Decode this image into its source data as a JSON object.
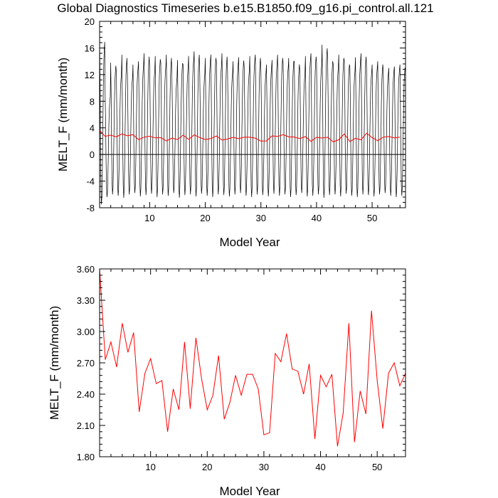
{
  "chart_data": [
    {
      "type": "line",
      "title": "Global Diagnostics Timeseries b.e15.B1850.f09_g16.pi_control.all.121",
      "xlabel": "Model Year",
      "ylabel": "MELT_F (mm/month)",
      "xlim": [
        1,
        56
      ],
      "ylim": [
        -8,
        20
      ],
      "xticks": [
        10,
        20,
        30,
        40,
        50
      ],
      "yticks": [
        -8,
        -4,
        0,
        4,
        8,
        12,
        16,
        20
      ],
      "ytick_labels": [
        "-8",
        "-4",
        "0",
        "4",
        "8",
        "12",
        "16",
        "20"
      ],
      "zero_line": true,
      "grid": false,
      "colors": {
        "monthly": "#000000",
        "annual": "#ff0000"
      },
      "series": [
        {
          "role": "monthly",
          "monthly_pattern": [
            15.0,
            9.0,
            1.0,
            -4.5,
            -6.2,
            -5.0,
            -1.5,
            3.5,
            8.5,
            12.0,
            13.5,
            14.5
          ],
          "yearly_peaks": [
            17.5,
            9.0,
            13.8,
            12.5,
            15.0,
            12.0,
            13.5,
            14.0,
            15.2,
            13.0,
            14.8,
            13.8,
            15.0,
            12.0,
            14.2,
            13.5,
            14.8,
            15.5,
            12.5,
            14.5,
            15.0,
            13.8,
            15.2,
            12.8,
            14.0,
            14.6,
            13.0,
            14.8,
            15.0,
            12.8,
            13.5,
            14.2,
            15.0,
            13.6,
            14.5,
            14.0,
            12.5,
            14.8,
            15.2,
            13.8,
            16.5,
            14.5,
            13.5,
            15.0,
            14.0,
            13.0,
            14.6,
            15.2,
            12.8,
            13.5,
            14.0,
            12.6,
            13.0,
            13.2,
            13.5
          ],
          "yearly_troughs": [
            -7.5,
            -6.4,
            -6.0,
            -6.2,
            -6.5,
            -6.0,
            -5.8,
            -6.3,
            -6.1,
            -5.9,
            -6.4,
            -6.0,
            -6.2,
            -5.8,
            -6.5,
            -6.1,
            -6.0,
            -6.3,
            -5.9,
            -6.2,
            -6.4,
            -6.0,
            -6.1,
            -6.3,
            -6.0,
            -5.8,
            -6.2,
            -6.4,
            -6.0,
            -6.1,
            -6.3,
            -5.9,
            -6.2,
            -6.0,
            -6.4,
            -6.1,
            -5.8,
            -6.3,
            -6.2,
            -6.0,
            -6.5,
            -6.1,
            -6.0,
            -6.3,
            -5.9,
            -6.2,
            -6.4,
            -6.0,
            -6.1,
            -6.3,
            -6.0,
            -5.8,
            -6.2,
            -6.4,
            -6.2
          ]
        },
        {
          "role": "annual",
          "x": [
            1,
            2,
            3,
            4,
            5,
            6,
            7,
            8,
            9,
            10,
            11,
            12,
            13,
            14,
            15,
            16,
            17,
            18,
            19,
            20,
            21,
            22,
            23,
            24,
            25,
            26,
            27,
            28,
            29,
            30,
            31,
            32,
            33,
            34,
            35,
            36,
            37,
            38,
            39,
            40,
            41,
            42,
            43,
            44,
            45,
            46,
            47,
            48,
            49,
            50,
            51,
            52,
            53,
            54,
            55
          ],
          "values": [
            3.6,
            2.73,
            2.9,
            2.66,
            3.08,
            2.8,
            2.99,
            2.23,
            2.6,
            2.74,
            2.5,
            2.53,
            2.04,
            2.45,
            2.25,
            2.9,
            2.26,
            2.94,
            2.55,
            2.25,
            2.39,
            2.77,
            2.16,
            2.32,
            2.58,
            2.39,
            2.59,
            2.59,
            2.45,
            2.01,
            2.03,
            2.79,
            2.71,
            2.98,
            2.64,
            2.62,
            2.4,
            2.69,
            1.97,
            2.58,
            2.47,
            2.59,
            1.9,
            2.22,
            3.08,
            1.94,
            2.43,
            2.21,
            3.2,
            2.53,
            2.07,
            2.6,
            2.7,
            2.48,
            2.6
          ]
        }
      ]
    },
    {
      "type": "line",
      "xlabel": "Model Year",
      "ylabel": "MELT_F (mm/month)",
      "xlim": [
        1,
        55
      ],
      "ylim": [
        1.8,
        3.6
      ],
      "xticks": [
        10,
        20,
        30,
        40,
        50
      ],
      "yticks": [
        1.8,
        2.1,
        2.4,
        2.7,
        3.0,
        3.3,
        3.6
      ],
      "ytick_labels": [
        "1.80",
        "2.10",
        "2.40",
        "2.70",
        "3.00",
        "3.30",
        "3.60"
      ],
      "grid": false,
      "colors": {
        "line": "#ff0000"
      },
      "series": [
        {
          "x": [
            1,
            2,
            3,
            4,
            5,
            6,
            7,
            8,
            9,
            10,
            11,
            12,
            13,
            14,
            15,
            16,
            17,
            18,
            19,
            20,
            21,
            22,
            23,
            24,
            25,
            26,
            27,
            28,
            29,
            30,
            31,
            32,
            33,
            34,
            35,
            36,
            37,
            38,
            39,
            40,
            41,
            42,
            43,
            44,
            45,
            46,
            47,
            48,
            49,
            50,
            51,
            52,
            53,
            54,
            55
          ],
          "values": [
            3.6,
            2.73,
            2.9,
            2.66,
            3.08,
            2.8,
            2.99,
            2.23,
            2.6,
            2.74,
            2.5,
            2.53,
            2.04,
            2.45,
            2.25,
            2.9,
            2.26,
            2.94,
            2.55,
            2.25,
            2.39,
            2.77,
            2.16,
            2.32,
            2.58,
            2.39,
            2.59,
            2.59,
            2.45,
            2.01,
            2.03,
            2.79,
            2.71,
            2.98,
            2.64,
            2.62,
            2.4,
            2.69,
            1.97,
            2.58,
            2.47,
            2.59,
            1.9,
            2.22,
            3.08,
            1.94,
            2.43,
            2.21,
            3.2,
            2.53,
            2.07,
            2.6,
            2.7,
            2.48,
            2.6
          ]
        }
      ]
    }
  ]
}
